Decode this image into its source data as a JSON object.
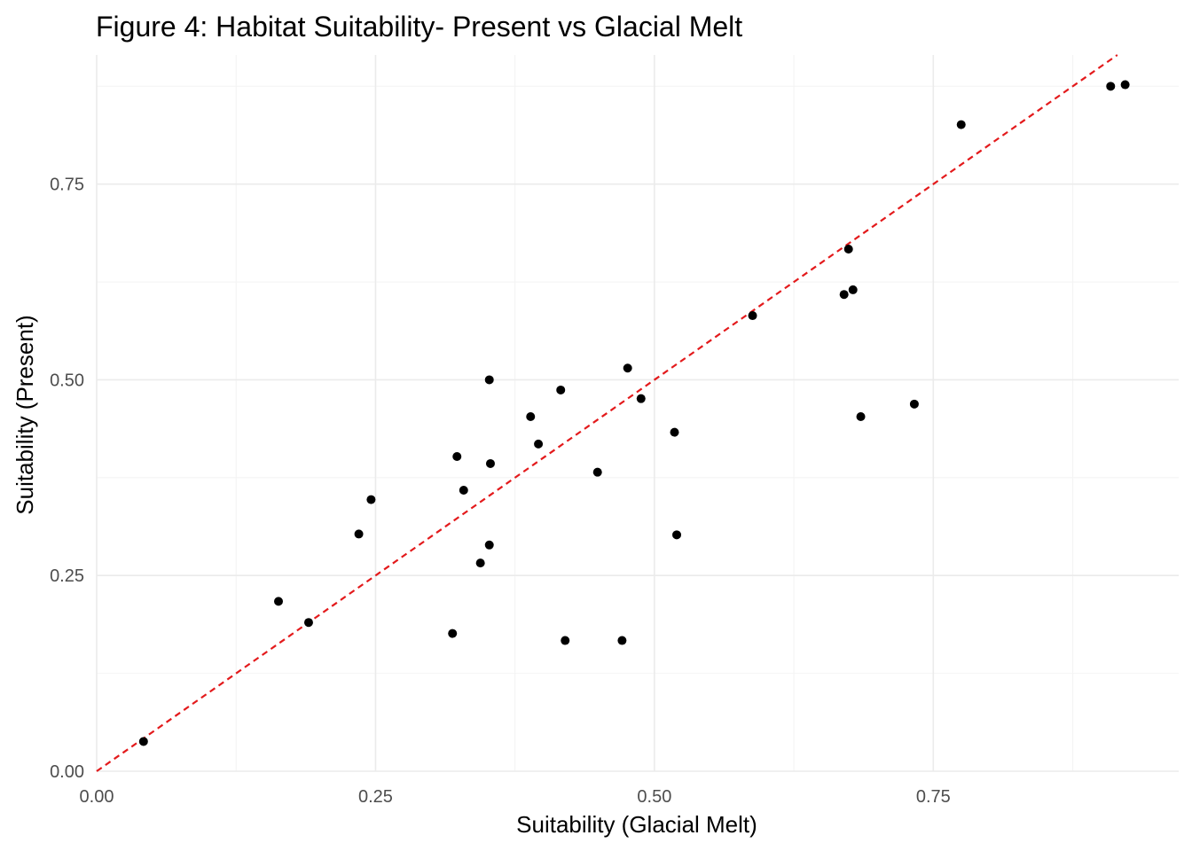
{
  "chart_data": {
    "type": "scatter",
    "title": "Figure 4: Habitat Suitability- Present vs Glacial Melt",
    "xlabel": "Suitability (Glacial Melt)",
    "ylabel": "Suitability (Present)",
    "xlim": [
      0,
      0.97
    ],
    "ylim": [
      0,
      0.915
    ],
    "x_ticks": [
      0,
      0.25,
      0.5,
      0.75
    ],
    "x_tick_labels": [
      "0.00",
      "0.25",
      "0.50",
      "0.75"
    ],
    "y_ticks": [
      0,
      0.25,
      0.5,
      0.75
    ],
    "y_tick_labels": [
      "0.00",
      "0.25",
      "0.50",
      "0.75"
    ],
    "grid": true,
    "point_color": "#000000",
    "reference_line": {
      "kind": "identity",
      "style": "dashed",
      "color": "#e31a1c"
    },
    "points": [
      {
        "x": 0.042,
        "y": 0.038
      },
      {
        "x": 0.163,
        "y": 0.217
      },
      {
        "x": 0.19,
        "y": 0.19
      },
      {
        "x": 0.235,
        "y": 0.303
      },
      {
        "x": 0.246,
        "y": 0.347
      },
      {
        "x": 0.319,
        "y": 0.176
      },
      {
        "x": 0.323,
        "y": 0.402
      },
      {
        "x": 0.329,
        "y": 0.359
      },
      {
        "x": 0.344,
        "y": 0.266
      },
      {
        "x": 0.352,
        "y": 0.289
      },
      {
        "x": 0.352,
        "y": 0.5
      },
      {
        "x": 0.353,
        "y": 0.393
      },
      {
        "x": 0.389,
        "y": 0.453
      },
      {
        "x": 0.396,
        "y": 0.418
      },
      {
        "x": 0.416,
        "y": 0.487
      },
      {
        "x": 0.42,
        "y": 0.167
      },
      {
        "x": 0.449,
        "y": 0.382
      },
      {
        "x": 0.471,
        "y": 0.167
      },
      {
        "x": 0.476,
        "y": 0.515
      },
      {
        "x": 0.488,
        "y": 0.476
      },
      {
        "x": 0.518,
        "y": 0.433
      },
      {
        "x": 0.52,
        "y": 0.302
      },
      {
        "x": 0.588,
        "y": 0.582
      },
      {
        "x": 0.67,
        "y": 0.609
      },
      {
        "x": 0.674,
        "y": 0.667
      },
      {
        "x": 0.678,
        "y": 0.615
      },
      {
        "x": 0.685,
        "y": 0.453
      },
      {
        "x": 0.733,
        "y": 0.469
      },
      {
        "x": 0.775,
        "y": 0.826
      },
      {
        "x": 0.909,
        "y": 0.875
      },
      {
        "x": 0.922,
        "y": 0.877
      }
    ]
  }
}
